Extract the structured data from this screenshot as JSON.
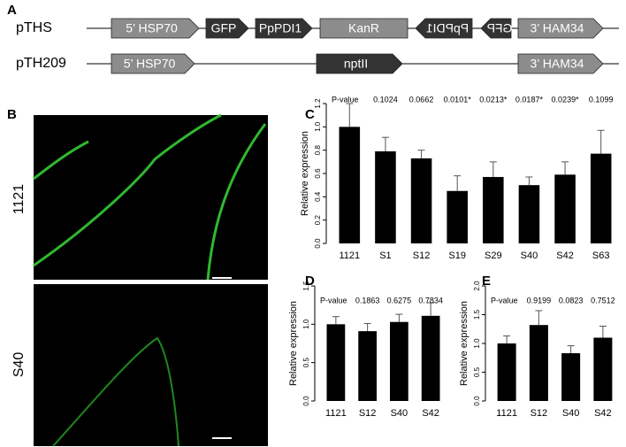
{
  "panel_labels": [
    "A",
    "B",
    "C",
    "D",
    "E"
  ],
  "constructs": [
    {
      "name": "pTHS",
      "elements": [
        "5’ HSP70",
        "GFP",
        "PpPDI1",
        "KanR",
        "PpPDI1",
        "GFP",
        "3’ HAM34"
      ]
    },
    {
      "name": "pTH209",
      "elements": [
        "5’ HSP70",
        "nptII",
        "3’ HAM34"
      ]
    }
  ],
  "micrographs": [
    "1121",
    "S40"
  ],
  "chart_data": [
    {
      "type": "bar",
      "y_label": "Relative expression",
      "p_value_label": "P-value",
      "categories": [
        "1121",
        "S1",
        "S12",
        "S19",
        "S29",
        "S40",
        "S42",
        "S63"
      ],
      "values": [
        1.0,
        0.79,
        0.73,
        0.45,
        0.57,
        0.5,
        0.59,
        0.77
      ],
      "errors": [
        0.2,
        0.12,
        0.07,
        0.13,
        0.13,
        0.07,
        0.11,
        0.2
      ],
      "p_values": [
        "0.1024",
        "0.0662",
        "0.0101*",
        "0.0213*",
        "0.0187*",
        "0.0239*",
        "0.1099"
      ],
      "color": "#000000",
      "ylim": [
        0,
        1.2
      ],
      "yticks": [
        {
          "value": 0,
          "label": "0.0"
        },
        0.2,
        0.4,
        0.6,
        0.8,
        {
          "value": 1,
          "label": "1.0"
        },
        1.2
      ]
    },
    {
      "type": "bar",
      "y_label": "Relative expression",
      "p_value_label": "P-value",
      "categories": [
        "1121",
        "S12",
        "S40",
        "S42"
      ],
      "values": [
        1.0,
        0.91,
        1.03,
        1.11
      ],
      "errors": [
        0.1,
        0.1,
        0.1,
        0.17
      ],
      "p_values": [
        "0.1863",
        "0.6275",
        "0.7834"
      ],
      "color": "#000000",
      "ylim": [
        0,
        1.5
      ],
      "yticks": [
        {
          "value": 0,
          "label": "0.0"
        },
        0.5,
        {
          "value": 1,
          "label": "1.0"
        },
        1.5
      ]
    },
    {
      "type": "bar",
      "y_label": "Relative expression",
      "p_value_label": "P-value",
      "categories": [
        "1121",
        "S12",
        "S40",
        "S42"
      ],
      "values": [
        1.0,
        1.32,
        0.83,
        1.1
      ],
      "errors": [
        0.13,
        0.25,
        0.13,
        0.2
      ],
      "p_values": [
        "0.9199",
        "0.0823",
        "0.7512"
      ],
      "color": "#000000",
      "ylim": [
        0,
        2.0
      ],
      "yticks": [
        {
          "value": 0,
          "label": "0.0"
        },
        0.5,
        {
          "value": 1,
          "label": "1.0"
        },
        1.5,
        {
          "value": 2,
          "label": "2.0"
        }
      ]
    }
  ]
}
